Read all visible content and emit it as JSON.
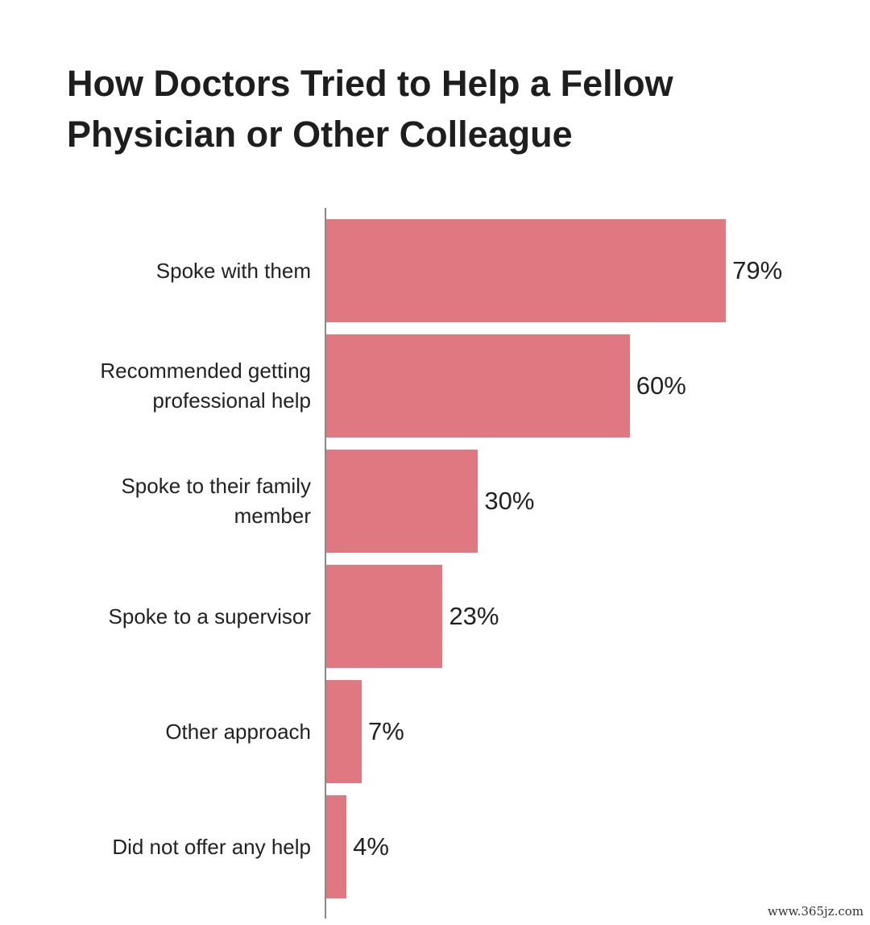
{
  "chart_data": {
    "type": "hbar",
    "title": "How Doctors Tried to Help a Fellow Physician or Other Colleague",
    "categories": [
      "Spoke with them",
      "Recommended getting professional help",
      "Spoke to their family member",
      "Spoke to a supervisor",
      "Other approach",
      "Did not offer any help"
    ],
    "values": [
      79,
      60,
      30,
      23,
      7,
      4
    ],
    "value_labels": [
      "79%",
      "60%",
      "30%",
      "23%",
      "7%",
      "4%"
    ],
    "color": "#e07882"
  },
  "watermark": "www.365jz.com"
}
